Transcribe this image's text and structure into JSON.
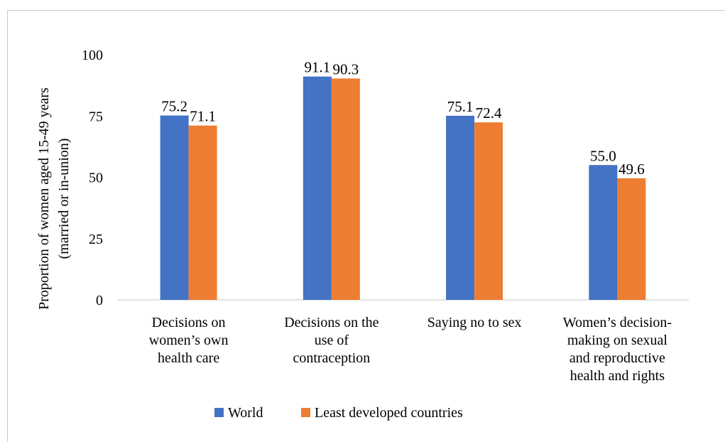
{
  "chart_data": {
    "type": "bar",
    "title": "",
    "ylabel": [
      "Proportion of women aged 15-49 years",
      "(married or in-union)"
    ],
    "xlabel": "",
    "ylim": [
      0,
      100
    ],
    "yticks": [
      "0",
      "25",
      "50",
      "75",
      "100"
    ],
    "categories": [
      [
        "Decisions on",
        "women’s own",
        "health care"
      ],
      [
        "Decisions on the",
        "use of",
        "contraception"
      ],
      [
        "Saying no to sex"
      ],
      [
        "Women’s decision-",
        "making on sexual",
        "and reproductive",
        "health and rights"
      ]
    ],
    "series": [
      {
        "name": "World",
        "color": "#4472C4",
        "values": [
          75.2,
          91.1,
          75.1,
          55.0
        ],
        "labels": [
          "75.2",
          "91.1",
          "75.1",
          "55.0"
        ]
      },
      {
        "name": "Least developed countries",
        "color": "#ED7D31",
        "values": [
          71.1,
          90.3,
          72.4,
          49.6
        ],
        "labels": [
          "71.1",
          "90.3",
          "72.4",
          "49.6"
        ]
      }
    ],
    "grid": false,
    "legend": "bottom"
  }
}
